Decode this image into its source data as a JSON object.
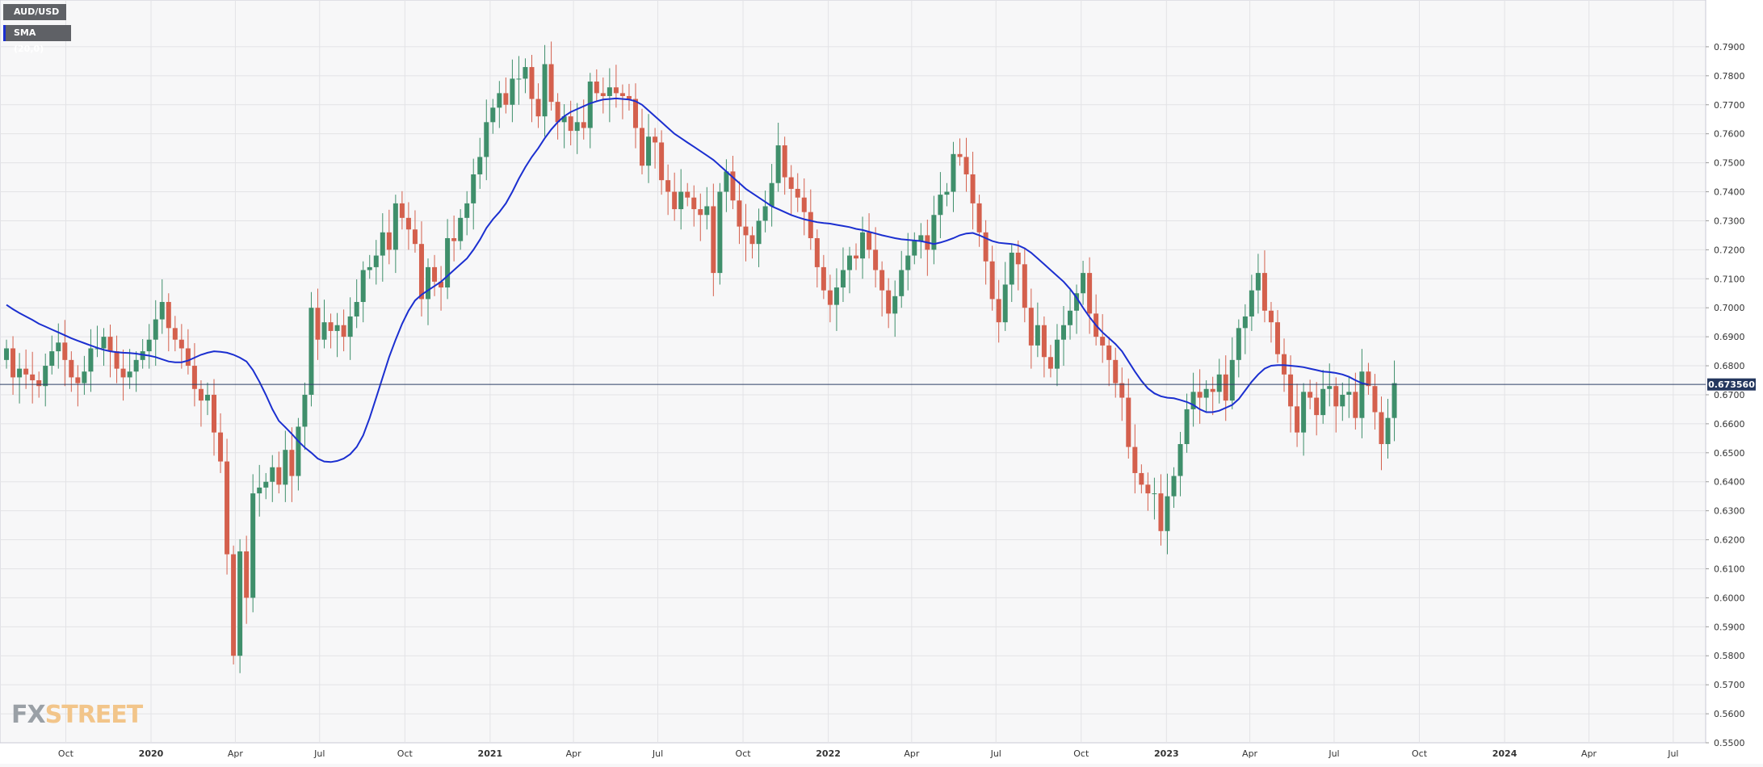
{
  "legend": {
    "pair": "AUD/USD",
    "indicator": "SMA (20,0)"
  },
  "logo": {
    "part1": "FX",
    "part2": "STREET"
  },
  "colors": {
    "up": "#3f8f6b",
    "down": "#d4604d",
    "sma": "#1b2fd0",
    "price_line": "#2c3e66",
    "grid": "#e3e3e6",
    "axis_text": "#333333"
  },
  "chart_data": {
    "type": "candlestick",
    "symbol": "AUD/USD",
    "timeframe": "weekly",
    "current_price": "0.673560",
    "ylim": [
      0.55,
      0.8
    ],
    "y_ticks": [
      "0.7900",
      "0.7800",
      "0.7700",
      "0.7600",
      "0.7500",
      "0.7400",
      "0.7300",
      "0.7200",
      "0.7100",
      "0.7000",
      "0.6900",
      "0.6800",
      "0.6700",
      "0.6600",
      "0.6500",
      "0.6400",
      "0.6300",
      "0.6200",
      "0.6100",
      "0.6000",
      "0.5900",
      "0.5800",
      "0.5700",
      "0.5600",
      "0.5500"
    ],
    "x_ticks": [
      {
        "label": "Oct",
        "date": "2019-10-01",
        "bold": false
      },
      {
        "label": "2020",
        "date": "2020-01-01",
        "bold": true
      },
      {
        "label": "Apr",
        "date": "2020-04-01",
        "bold": false
      },
      {
        "label": "Jul",
        "date": "2020-07-01",
        "bold": false
      },
      {
        "label": "Oct",
        "date": "2020-10-01",
        "bold": false
      },
      {
        "label": "2021",
        "date": "2021-01-01",
        "bold": true
      },
      {
        "label": "Apr",
        "date": "2021-04-01",
        "bold": false
      },
      {
        "label": "Jul",
        "date": "2021-07-01",
        "bold": false
      },
      {
        "label": "Oct",
        "date": "2021-10-01",
        "bold": false
      },
      {
        "label": "2022",
        "date": "2022-01-01",
        "bold": true
      },
      {
        "label": "Apr",
        "date": "2022-04-01",
        "bold": false
      },
      {
        "label": "Jul",
        "date": "2022-07-01",
        "bold": false
      },
      {
        "label": "Oct",
        "date": "2022-10-01",
        "bold": false
      },
      {
        "label": "2023",
        "date": "2023-01-01",
        "bold": true
      },
      {
        "label": "Apr",
        "date": "2023-04-01",
        "bold": false
      },
      {
        "label": "Jul",
        "date": "2023-07-01",
        "bold": false
      },
      {
        "label": "Oct",
        "date": "2023-10-01",
        "bold": false
      },
      {
        "label": "2024",
        "date": "2024-01-01",
        "bold": true
      },
      {
        "label": "Apr",
        "date": "2024-04-01",
        "bold": false
      },
      {
        "label": "Jul",
        "date": "2024-07-01",
        "bold": false
      }
    ],
    "x_range": [
      "2019-07-22",
      "2024-08-05"
    ],
    "first_date": "2019-07-29",
    "closes": [
      0.686,
      0.676,
      0.679,
      0.677,
      0.675,
      0.673,
      0.68,
      0.685,
      0.688,
      0.682,
      0.676,
      0.674,
      0.678,
      0.686,
      0.686,
      0.69,
      0.685,
      0.679,
      0.676,
      0.678,
      0.682,
      0.685,
      0.689,
      0.696,
      0.702,
      0.693,
      0.689,
      0.686,
      0.68,
      0.672,
      0.668,
      0.67,
      0.657,
      0.647,
      0.615,
      0.58,
      0.616,
      0.6,
      0.636,
      0.638,
      0.64,
      0.645,
      0.639,
      0.651,
      0.642,
      0.659,
      0.67,
      0.7,
      0.689,
      0.695,
      0.692,
      0.694,
      0.69,
      0.697,
      0.702,
      0.713,
      0.714,
      0.718,
      0.726,
      0.72,
      0.736,
      0.731,
      0.727,
      0.722,
      0.703,
      0.714,
      0.709,
      0.707,
      0.724,
      0.723,
      0.731,
      0.736,
      0.746,
      0.752,
      0.764,
      0.769,
      0.774,
      0.77,
      0.779,
      0.779,
      0.783,
      0.772,
      0.766,
      0.784,
      0.771,
      0.764,
      0.766,
      0.761,
      0.764,
      0.762,
      0.778,
      0.774,
      0.773,
      0.776,
      0.774,
      0.773,
      0.772,
      0.762,
      0.749,
      0.759,
      0.757,
      0.744,
      0.74,
      0.734,
      0.74,
      0.738,
      0.734,
      0.732,
      0.735,
      0.712,
      0.74,
      0.747,
      0.737,
      0.728,
      0.725,
      0.722,
      0.73,
      0.735,
      0.743,
      0.756,
      0.745,
      0.741,
      0.738,
      0.733,
      0.724,
      0.714,
      0.706,
      0.701,
      0.707,
      0.713,
      0.718,
      0.717,
      0.726,
      0.72,
      0.713,
      0.706,
      0.698,
      0.704,
      0.713,
      0.718,
      0.723,
      0.725,
      0.72,
      0.732,
      0.739,
      0.74,
      0.753,
      0.752,
      0.746,
      0.736,
      0.726,
      0.716,
      0.703,
      0.695,
      0.708,
      0.719,
      0.715,
      0.7,
      0.687,
      0.694,
      0.683,
      0.679,
      0.689,
      0.694,
      0.699,
      0.705,
      0.712,
      0.698,
      0.69,
      0.687,
      0.682,
      0.674,
      0.669,
      0.652,
      0.643,
      0.639,
      0.636,
      0.636,
      0.623,
      0.635,
      0.642,
      0.653,
      0.665,
      0.671,
      0.669,
      0.672,
      0.671,
      0.677,
      0.668,
      0.682,
      0.693,
      0.697,
      0.706,
      0.712,
      0.699,
      0.695,
      0.684,
      0.677,
      0.666,
      0.657,
      0.671,
      0.669,
      0.663,
      0.672,
      0.673,
      0.666,
      0.67,
      0.671,
      0.662,
      0.678,
      0.673,
      0.664,
      0.653,
      0.662,
      0.674
    ],
    "sma": {
      "name": "SMA (20,0)",
      "start_index": 0,
      "values": [
        0.701,
        0.6995,
        0.6982,
        0.697,
        0.6958,
        0.6945,
        0.6935,
        0.6925,
        0.6915,
        0.6905,
        0.6895,
        0.6886,
        0.6878,
        0.687,
        0.6862,
        0.6855,
        0.685,
        0.6847,
        0.6845,
        0.6844,
        0.6842,
        0.6838,
        0.6835,
        0.683,
        0.6822,
        0.6815,
        0.6812,
        0.6812,
        0.6818,
        0.6828,
        0.6838,
        0.6845,
        0.685,
        0.6848,
        0.6845,
        0.6838,
        0.6828,
        0.6815,
        0.6785,
        0.6745,
        0.67,
        0.665,
        0.661,
        0.6588,
        0.6565,
        0.654,
        0.6518,
        0.65,
        0.648,
        0.647,
        0.6468,
        0.6472,
        0.648,
        0.6495,
        0.652,
        0.656,
        0.662,
        0.669,
        0.676,
        0.683,
        0.689,
        0.6945,
        0.699,
        0.7025,
        0.7045,
        0.706,
        0.7075,
        0.709,
        0.711,
        0.713,
        0.715,
        0.717,
        0.72,
        0.7235,
        0.7275,
        0.7305,
        0.733,
        0.736,
        0.74,
        0.7445,
        0.7485,
        0.752,
        0.755,
        0.7585,
        0.7615,
        0.764,
        0.766,
        0.7675,
        0.7685,
        0.7695,
        0.7705,
        0.7712,
        0.7718,
        0.772,
        0.7722,
        0.772,
        0.7718,
        0.7712,
        0.77,
        0.768,
        0.766,
        0.764,
        0.762,
        0.76,
        0.7585,
        0.757,
        0.7555,
        0.754,
        0.7525,
        0.751,
        0.749,
        0.747,
        0.745,
        0.743,
        0.741,
        0.7395,
        0.738,
        0.7365,
        0.735,
        0.734,
        0.733,
        0.732,
        0.7312,
        0.7305,
        0.73,
        0.7295,
        0.7292,
        0.729,
        0.7286,
        0.7282,
        0.7278,
        0.7272,
        0.7268,
        0.7262,
        0.7256,
        0.725,
        0.7245,
        0.724,
        0.7236,
        0.7234,
        0.7232,
        0.723,
        0.7225,
        0.722,
        0.7225,
        0.7232,
        0.724,
        0.725,
        0.7256,
        0.7258,
        0.725,
        0.724,
        0.723,
        0.7224,
        0.7222,
        0.722,
        0.7215,
        0.7205,
        0.719,
        0.717,
        0.715,
        0.713,
        0.711,
        0.709,
        0.7065,
        0.7035,
        0.7,
        0.6968,
        0.694,
        0.6915,
        0.6895,
        0.6875,
        0.685,
        0.6815,
        0.678,
        0.6748,
        0.6722,
        0.6705,
        0.6695,
        0.669,
        0.6688,
        0.6682,
        0.6675,
        0.6665,
        0.665,
        0.664,
        0.664,
        0.6645,
        0.6655,
        0.6665,
        0.6685,
        0.6715,
        0.6745,
        0.677,
        0.679,
        0.68,
        0.6802,
        0.6802,
        0.68,
        0.6798,
        0.6795,
        0.679,
        0.6785,
        0.678,
        0.6778,
        0.6775,
        0.677,
        0.6762,
        0.675,
        0.674,
        0.6735
      ]
    }
  }
}
